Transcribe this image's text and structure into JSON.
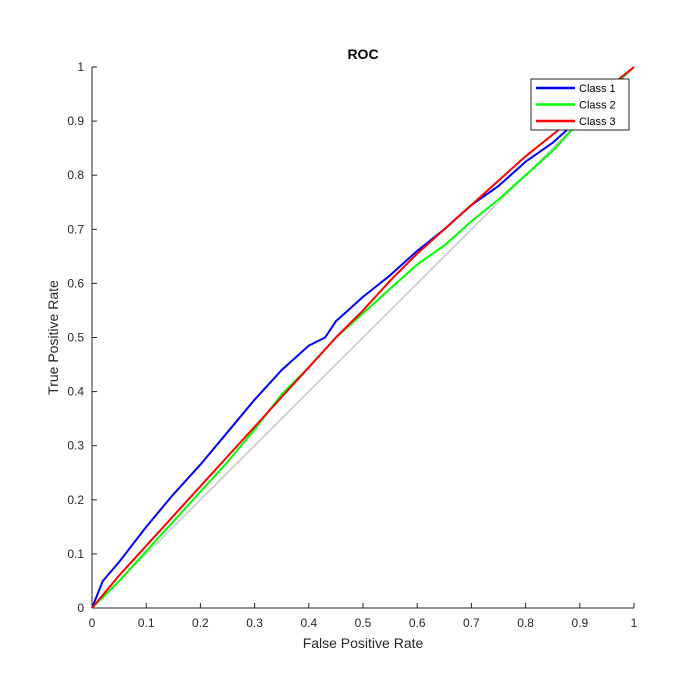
{
  "chart_data": {
    "type": "line",
    "title": "ROC",
    "xlabel": "False Positive Rate",
    "ylabel": "True Positive Rate",
    "xlim": [
      0,
      1
    ],
    "ylim": [
      0,
      1
    ],
    "xticks": [
      "0",
      "0.1",
      "0.2",
      "0.3",
      "0.4",
      "0.5",
      "0.6",
      "0.7",
      "0.8",
      "0.9",
      "1"
    ],
    "yticks": [
      "0",
      "0.1",
      "0.2",
      "0.3",
      "0.4",
      "0.5",
      "0.6",
      "0.7",
      "0.8",
      "0.9",
      "1"
    ],
    "grid": false,
    "legend_position": "top-right",
    "reference_line": {
      "x": [
        0,
        1
      ],
      "y": [
        0,
        1
      ],
      "color": "#c8c8c8"
    },
    "series": [
      {
        "name": "Class 1",
        "color": "#0000ff",
        "x": [
          0,
          0.02,
          0.05,
          0.1,
          0.15,
          0.2,
          0.25,
          0.3,
          0.35,
          0.4,
          0.43,
          0.45,
          0.5,
          0.55,
          0.6,
          0.65,
          0.7,
          0.75,
          0.8,
          0.85,
          0.9,
          0.95,
          1
        ],
        "y": [
          0,
          0.05,
          0.085,
          0.15,
          0.21,
          0.265,
          0.325,
          0.385,
          0.44,
          0.485,
          0.5,
          0.53,
          0.575,
          0.615,
          0.66,
          0.7,
          0.745,
          0.78,
          0.825,
          0.86,
          0.905,
          0.955,
          1
        ]
      },
      {
        "name": "Class 2",
        "color": "#00ff00",
        "x": [
          0,
          0.05,
          0.1,
          0.15,
          0.2,
          0.25,
          0.3,
          0.35,
          0.4,
          0.45,
          0.5,
          0.55,
          0.6,
          0.65,
          0.7,
          0.75,
          0.8,
          0.85,
          0.9,
          0.95,
          1
        ],
        "y": [
          0,
          0.05,
          0.105,
          0.16,
          0.215,
          0.27,
          0.33,
          0.395,
          0.445,
          0.5,
          0.545,
          0.59,
          0.635,
          0.67,
          0.715,
          0.755,
          0.8,
          0.845,
          0.9,
          0.955,
          1
        ]
      },
      {
        "name": "Class 3",
        "color": "#ff0000",
        "x": [
          0,
          0.05,
          0.1,
          0.15,
          0.2,
          0.25,
          0.3,
          0.35,
          0.4,
          0.45,
          0.5,
          0.55,
          0.6,
          0.65,
          0.7,
          0.75,
          0.8,
          0.85,
          0.9,
          0.95,
          1
        ],
        "y": [
          0,
          0.06,
          0.115,
          0.17,
          0.225,
          0.28,
          0.335,
          0.39,
          0.445,
          0.5,
          0.55,
          0.605,
          0.655,
          0.7,
          0.745,
          0.79,
          0.835,
          0.875,
          0.915,
          0.96,
          1
        ]
      }
    ]
  }
}
